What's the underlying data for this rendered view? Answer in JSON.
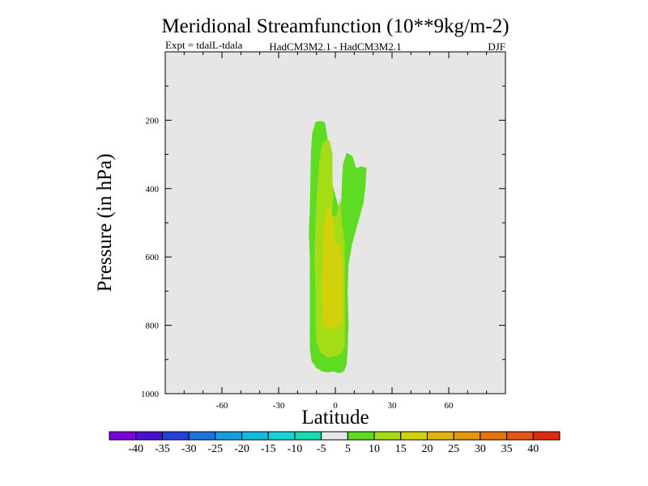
{
  "chart_data": {
    "type": "contourf",
    "title": "Meridional Streamfunction (10**9kg/m-2)",
    "subtitle_left": "Expt = tdalL-tdala",
    "subtitle_center": "HadCM3M2.1 - HadCM3M2.1",
    "subtitle_right": "DJF",
    "xlabel": "Latitude",
    "ylabel": "Pressure (in hPa)",
    "xlim": [
      -90,
      90
    ],
    "ylim": [
      1000,
      0
    ],
    "xticks": [
      -60,
      -30,
      0,
      30,
      60
    ],
    "xtick_labels": [
      "-60",
      "-30",
      "0",
      "30",
      "60"
    ],
    "yticks": [
      200,
      400,
      600,
      800,
      1000
    ],
    "ytick_labels": [
      "200",
      "400",
      "600",
      "800",
      "1000"
    ],
    "xminor_step": 10,
    "yminor_step": 100,
    "background_color": "#e6e6e6",
    "contour_levels": [
      "-40",
      "-35",
      "-30",
      "-25",
      "-20",
      "-15",
      "-10",
      "-5",
      "5",
      "10",
      "15",
      "20",
      "25",
      "30",
      "35",
      "40"
    ],
    "colorbar_colors": [
      "#7b00d9",
      "#4a10d0",
      "#2440dc",
      "#1a74dc",
      "#12a0e0",
      "#12bce0",
      "#12d6d6",
      "#16dcb4",
      "#e6e6e6",
      "#5edc24",
      "#a4dc16",
      "#d2d20a",
      "#e0b40e",
      "#e6960a",
      "#e6740e",
      "#e65514",
      "#e02c0c"
    ],
    "regions": [
      {
        "level": "5 to 10",
        "color": "#5edc24",
        "outline": [
          [
            -10.5,
            205
          ],
          [
            -8,
            202
          ],
          [
            -5.5,
            206
          ],
          [
            -4.5,
            240
          ],
          [
            -3,
            290
          ],
          [
            -2,
            380
          ],
          [
            2,
            460
          ],
          [
            3,
            440
          ],
          [
            4,
            330
          ],
          [
            6,
            295
          ],
          [
            9,
            305
          ],
          [
            11,
            340
          ],
          [
            14,
            335
          ],
          [
            16.5,
            340
          ],
          [
            16,
            390
          ],
          [
            15,
            440
          ],
          [
            12,
            500
          ],
          [
            9,
            560
          ],
          [
            7,
            620
          ],
          [
            6.5,
            700
          ],
          [
            7,
            800
          ],
          [
            6.5,
            870
          ],
          [
            6,
            915
          ],
          [
            4.5,
            935
          ],
          [
            2,
            940
          ],
          [
            -1,
            935
          ],
          [
            -4,
            938
          ],
          [
            -7,
            935
          ],
          [
            -10,
            925
          ],
          [
            -12.5,
            905
          ],
          [
            -13.5,
            870
          ],
          [
            -13.5,
            800
          ],
          [
            -13.5,
            700
          ],
          [
            -13.5,
            600
          ],
          [
            -14,
            530
          ],
          [
            -13.5,
            460
          ],
          [
            -13.2,
            380
          ],
          [
            -13,
            300
          ],
          [
            -12.3,
            240
          ]
        ]
      },
      {
        "level": "10 to 15",
        "color": "#a4dc16",
        "outline": [
          [
            -5,
            256
          ],
          [
            -3,
            260
          ],
          [
            -1.5,
            300
          ],
          [
            -1.5,
            380
          ],
          [
            -1,
            430
          ],
          [
            -2,
            480
          ],
          [
            0.5,
            480
          ],
          [
            2.5,
            430
          ],
          [
            3.5,
            500
          ],
          [
            5,
            560
          ],
          [
            5,
            600
          ],
          [
            5,
            700
          ],
          [
            5,
            800
          ],
          [
            5,
            860
          ],
          [
            3.5,
            880
          ],
          [
            0,
            890
          ],
          [
            -4,
            895
          ],
          [
            -8,
            880
          ],
          [
            -10,
            850
          ],
          [
            -10.5,
            800
          ],
          [
            -10.5,
            700
          ],
          [
            -11,
            600
          ],
          [
            -10.5,
            500
          ],
          [
            -9.5,
            400
          ],
          [
            -8.5,
            320
          ],
          [
            -7,
            270
          ]
        ]
      },
      {
        "level": "15 to 20",
        "color": "#d2d20a",
        "outline": [
          [
            -3.5,
            450
          ],
          [
            -2,
            460
          ],
          [
            -1,
            500
          ],
          [
            -0.5,
            560
          ],
          [
            2,
            560
          ],
          [
            4,
            620
          ],
          [
            4,
            700
          ],
          [
            4,
            780
          ],
          [
            3,
            800
          ],
          [
            0,
            805
          ],
          [
            -4,
            810
          ],
          [
            -6.5,
            800
          ],
          [
            -7,
            740
          ],
          [
            -7,
            660
          ],
          [
            -6.5,
            560
          ],
          [
            -5.5,
            480
          ]
        ]
      }
    ]
  }
}
